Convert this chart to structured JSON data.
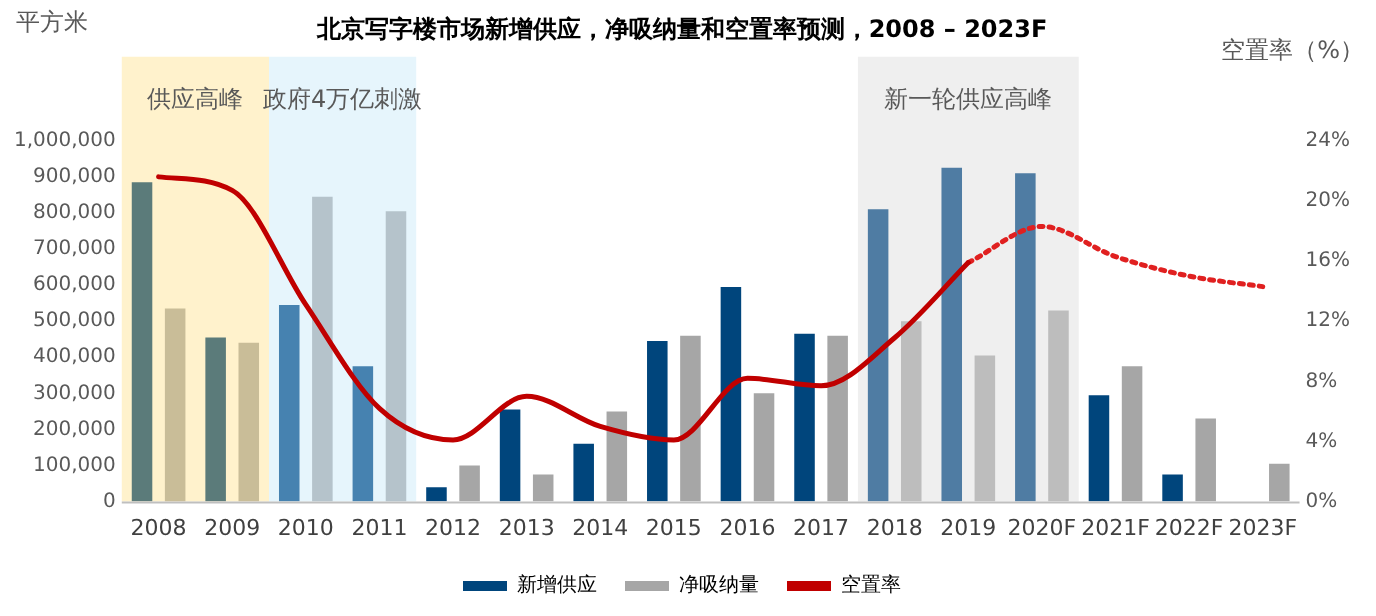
{
  "chart_data": {
    "type": "bar",
    "title": "北京写字楼市场新增供应，净吸纳量和空置率预测，2008 – 2023F",
    "ylabel": "平方米",
    "y2label": "空置率（%）",
    "categories": [
      "2008",
      "2009",
      "2010",
      "2011",
      "2012",
      "2013",
      "2014",
      "2015",
      "2016",
      "2017",
      "2018",
      "2019",
      "2020F",
      "2021F",
      "2022F",
      "2023F"
    ],
    "series": [
      {
        "name": "新增供应",
        "color": "#00457c",
        "colors": [
          "#5b7b7a",
          "#5b7b7a",
          "#4682b0",
          "#4682b0",
          "#00457c",
          "#00457c",
          "#00457c",
          "#00457c",
          "#00457c",
          "#00457c",
          "#4f7ca3",
          "#4f7ca3",
          "#4f7ca3",
          "#00457c",
          "#00457c",
          "#00457c"
        ],
        "values": [
          885000,
          455000,
          545000,
          375000,
          40000,
          255000,
          160000,
          445000,
          595000,
          465000,
          810000,
          925000,
          910000,
          295000,
          75000,
          null
        ]
      },
      {
        "name": "净吸纳量",
        "color": "#a6a6a6",
        "colors": [
          "#c9bd98",
          "#c9bd98",
          "#b5c3cb",
          "#b5c3cb",
          "#a6a6a6",
          "#a6a6a6",
          "#a6a6a6",
          "#a6a6a6",
          "#a6a6a6",
          "#a6a6a6",
          "#bdbdbd",
          "#bdbdbd",
          "#bdbdbd",
          "#a6a6a6",
          "#a6a6a6",
          "#a6a6a6"
        ],
        "values": [
          535000,
          440000,
          845000,
          805000,
          100000,
          75000,
          250000,
          460000,
          300000,
          460000,
          500000,
          405000,
          530000,
          375000,
          230000,
          105000
        ]
      },
      {
        "name": "空置率",
        "type": "line",
        "axis": "y2",
        "color": "#c00000",
        "line_style": "solid",
        "values": [
          21.6,
          20.7,
          13.1,
          6.2,
          4.1,
          7.0,
          5.0,
          4.1,
          8.2,
          7.7,
          10.9,
          15.9,
          null,
          null,
          null,
          null
        ]
      },
      {
        "type": "line",
        "axis": "y2",
        "color": "#e02020",
        "line_style": "dotted",
        "values": [
          null,
          null,
          null,
          null,
          null,
          null,
          null,
          null,
          null,
          null,
          null,
          15.9,
          18.3,
          16.3,
          15.0,
          14.3
        ]
      }
    ],
    "ylim": [
      0,
      1000000
    ],
    "yticks": [
      {
        "value": 0,
        "label": "0"
      },
      {
        "value": 100000,
        "label": "100,000"
      },
      {
        "value": 200000,
        "label": "200,000"
      },
      {
        "value": 300000,
        "label": "300,000"
      },
      {
        "value": 400000,
        "label": "400,000"
      },
      {
        "value": 500000,
        "label": "500,000"
      },
      {
        "value": 600000,
        "label": "600,000"
      },
      {
        "value": 700000,
        "label": "700,000"
      },
      {
        "value": 800000,
        "label": "800,000"
      },
      {
        "value": 900000,
        "label": "900,000"
      },
      {
        "value": 1000000,
        "label": "1,000,000"
      }
    ],
    "y2lim": [
      0,
      24
    ],
    "y2ticks": [
      {
        "value": 0,
        "label": "0%"
      },
      {
        "value": 4,
        "label": "4%"
      },
      {
        "value": 8,
        "label": "8%"
      },
      {
        "value": 12,
        "label": "12%"
      },
      {
        "value": 16,
        "label": "16%"
      },
      {
        "value": 20,
        "label": "20%"
      },
      {
        "value": 24,
        "label": "24%"
      }
    ],
    "bands": [
      {
        "axis": "x",
        "from": "2008",
        "to": "2009",
        "label": "供应高峰",
        "color": "#fff2cc"
      },
      {
        "axis": "x",
        "from": "2010",
        "to": "2011",
        "label": "政府4万亿刺激",
        "color": "#e6f5fc"
      },
      {
        "axis": "x",
        "from": "2018",
        "to": "2020F",
        "label": "新一轮供应高峰",
        "color": "#efefef"
      }
    ],
    "grid": false,
    "legend": "bottom",
    "marker": "none"
  }
}
